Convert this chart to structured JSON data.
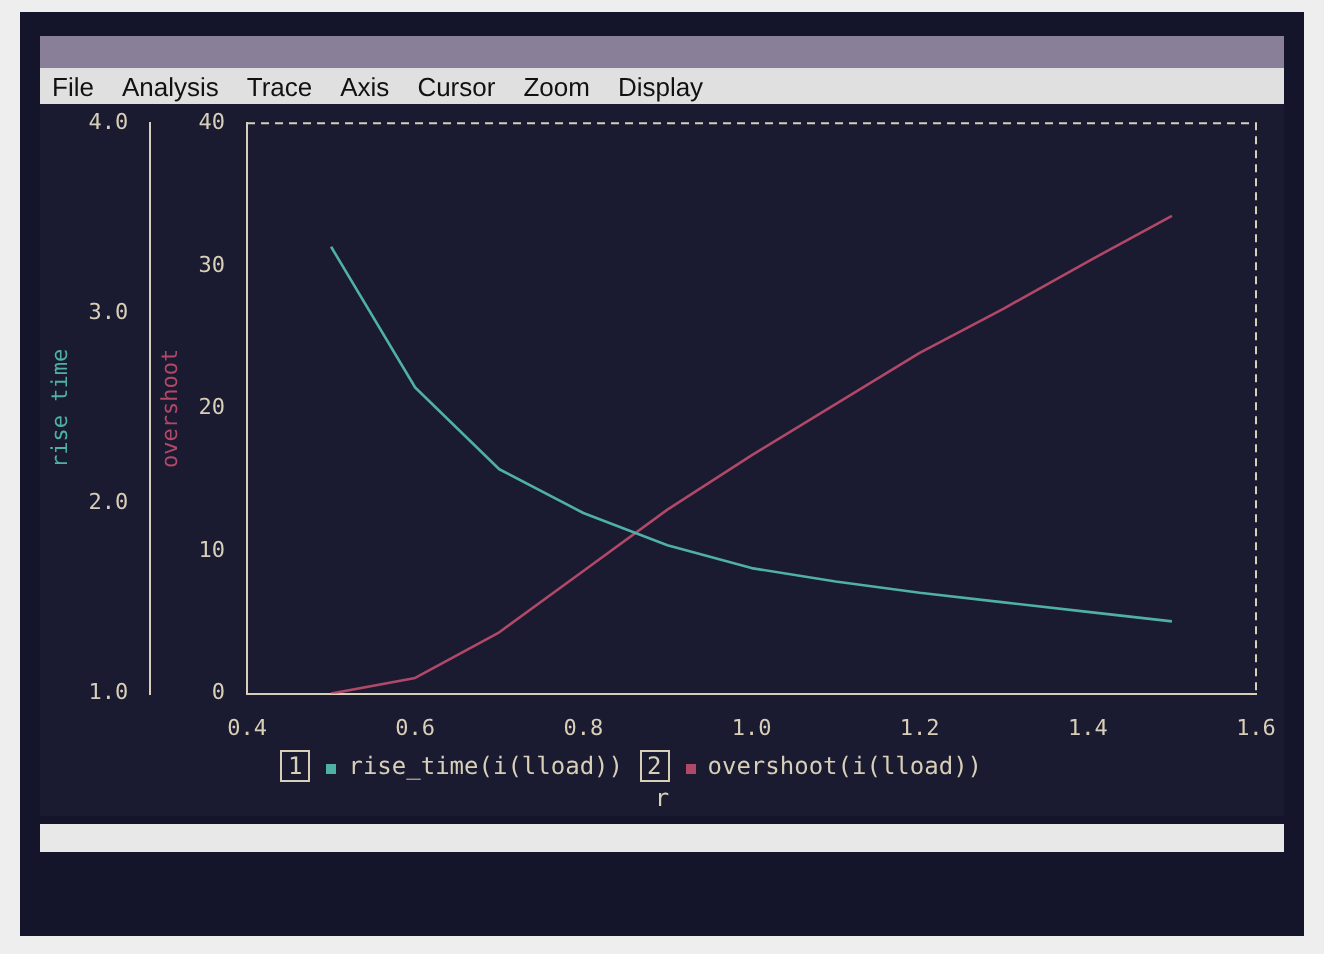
{
  "chart_data": {
    "type": "line",
    "xlabel": "r",
    "ylabel": "rise time",
    "y2label": "overshoot",
    "x": [
      0.5,
      0.6,
      0.7,
      0.8,
      0.9,
      1.0,
      1.1,
      1.2,
      1.3,
      1.4,
      1.5
    ],
    "series": [
      {
        "name": "rise_time(i(lload))",
        "color": "#4fb0a8",
        "values": [
          3.35,
          2.61,
          2.18,
          1.95,
          1.78,
          1.66,
          1.59,
          1.53,
          1.48,
          1.43,
          1.38
        ]
      },
      {
        "name": "overshoot(i(lload))",
        "color": "#b04868",
        "axis": "y2",
        "values": [
          0,
          1.1,
          4.3,
          8.6,
          12.9,
          16.7,
          20.3,
          23.9,
          27.0,
          30.3,
          33.5
        ]
      }
    ],
    "xlim": [
      0.4,
      1.6
    ],
    "xticks": [
      {
        "value": 0.4,
        "label": "0.4"
      },
      {
        "value": 0.6,
        "label": "0.6"
      },
      {
        "value": 0.8,
        "label": "0.8"
      },
      {
        "value": 1.0,
        "label": "1.0"
      },
      {
        "value": 1.2,
        "label": "1.2"
      },
      {
        "value": 1.4,
        "label": "1.4"
      },
      {
        "value": 1.6,
        "label": "1.6"
      }
    ],
    "ylim": [
      1,
      4
    ],
    "yticks": [
      {
        "value": 1,
        "label": "1.0"
      },
      {
        "value": 2,
        "label": "2.0"
      },
      {
        "value": 3,
        "label": "3.0"
      },
      {
        "value": 4,
        "label": "4.0"
      }
    ],
    "y2lim": [
      0,
      40
    ],
    "y2ticks": [
      0,
      10,
      20,
      30,
      40
    ],
    "marker": "none",
    "legend": "bottom",
    "annotations": [
      "1",
      "2",
      "File",
      "Analysis",
      "Trace",
      "Axis",
      "Cursor",
      "Zoom",
      "Display"
    ]
  }
}
